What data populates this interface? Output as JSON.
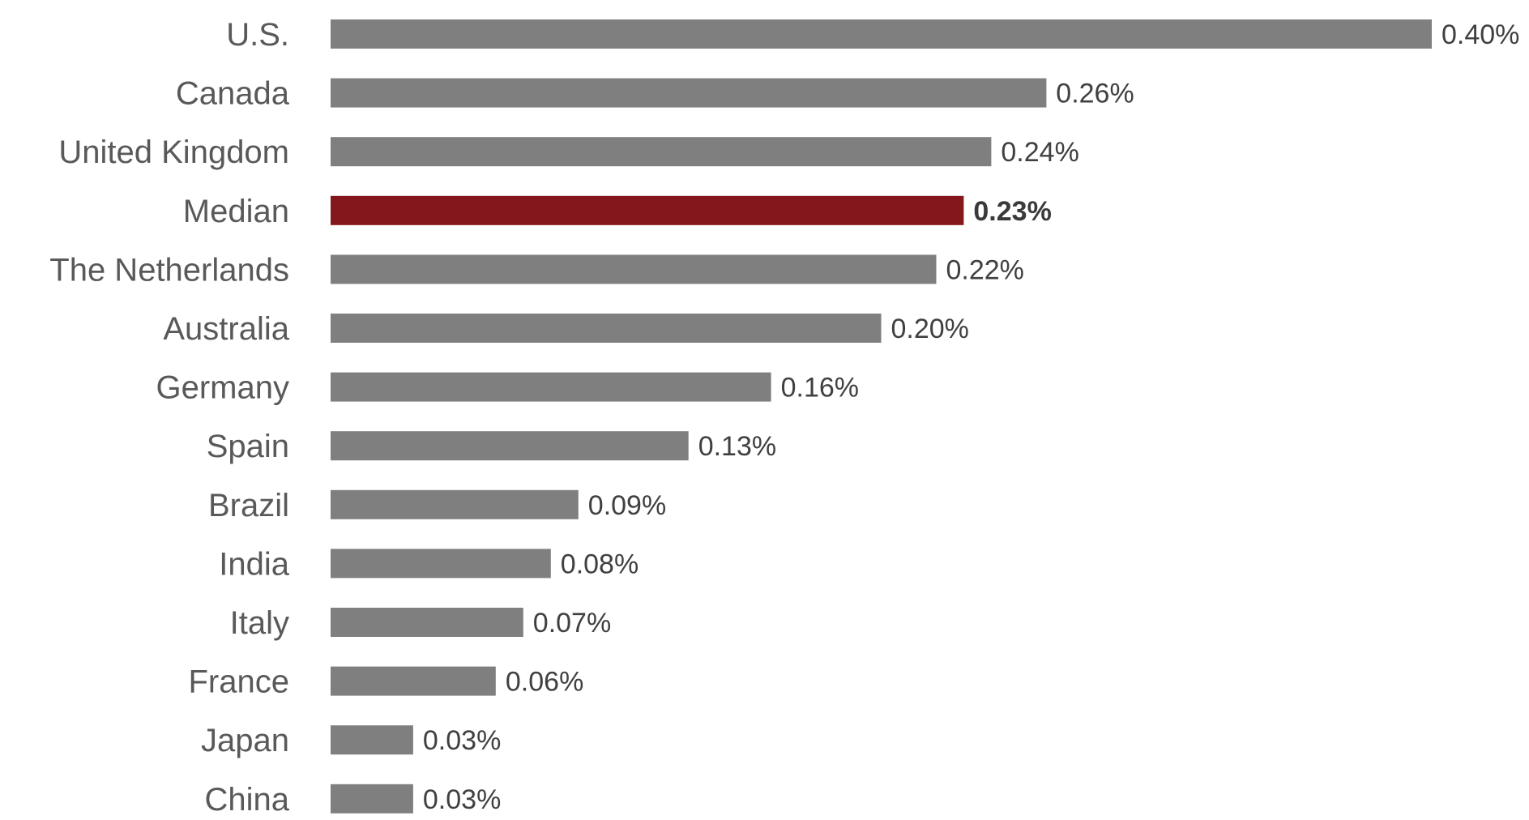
{
  "chart_data": {
    "type": "bar",
    "orientation": "horizontal",
    "categories": [
      "U.S.",
      "Canada",
      "United Kingdom",
      "Median",
      "The Netherlands",
      "Australia",
      "Germany",
      "Spain",
      "Brazil",
      "India",
      "Italy",
      "France",
      "Japan",
      "China"
    ],
    "values": [
      0.4,
      0.26,
      0.24,
      0.23,
      0.22,
      0.2,
      0.16,
      0.13,
      0.09,
      0.08,
      0.07,
      0.06,
      0.03,
      0.03
    ],
    "value_labels": [
      "0.40%",
      "0.26%",
      "0.24%",
      "0.23%",
      "0.22%",
      "0.20%",
      "0.16%",
      "0.13%",
      "0.09%",
      "0.08%",
      "0.07%",
      "0.06%",
      "0.03%",
      "0.03%"
    ],
    "highlight_category": "Median",
    "xlim": [
      0,
      0.4
    ],
    "grid": false,
    "legend": "none",
    "colors": {
      "bar": "#7f7f7f",
      "highlight": "#84171b"
    }
  }
}
